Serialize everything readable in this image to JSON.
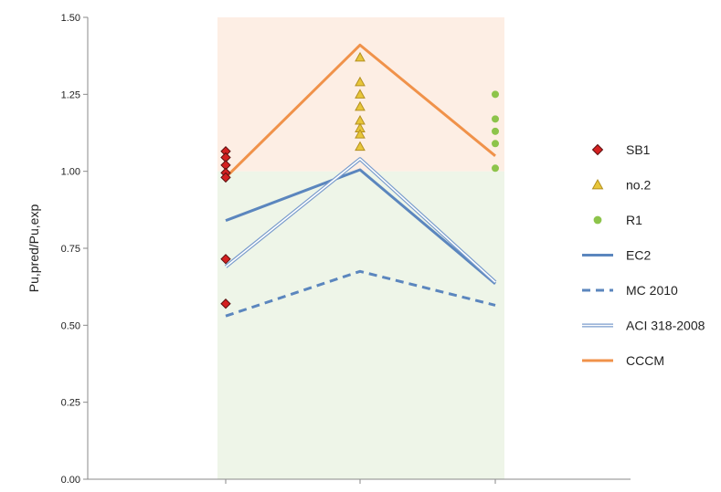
{
  "chart_data": {
    "type": "line",
    "categories": [
      "",
      "",
      ""
    ],
    "ylabel": "Pu,pred/Pu,exp",
    "ylim": [
      0,
      1.5
    ],
    "yticks": [
      0.0,
      0.25,
      0.5,
      0.75,
      1.0,
      1.25,
      1.5
    ],
    "ytick_labels": [
      "0.00",
      "0.25",
      "0.50",
      "0.75",
      "1.00",
      "1.25",
      "1.50"
    ],
    "bands": [
      {
        "from": 0,
        "to": 1.0,
        "color": "#eef5e8"
      },
      {
        "from": 1.0,
        "to": 1.5,
        "color": "#fdeee4"
      }
    ],
    "scatter_series": [
      {
        "name": "SB1",
        "marker": "diamond",
        "color": "#d42020",
        "x_index": 0,
        "values": [
          1.065,
          1.045,
          1.02,
          0.995,
          0.98,
          0.715,
          0.57
        ]
      },
      {
        "name": "no.2",
        "marker": "triangle",
        "color": "#e8c63a",
        "x_index": 1,
        "values": [
          1.37,
          1.29,
          1.25,
          1.21,
          1.165,
          1.14,
          1.12,
          1.08
        ]
      },
      {
        "name": "R1",
        "marker": "circle",
        "color": "#8dc44b",
        "x_index": 2,
        "values": [
          1.25,
          1.17,
          1.13,
          1.09,
          1.01
        ]
      }
    ],
    "line_series": [
      {
        "name": "EC2",
        "style": "solid",
        "color": "#5b86be",
        "values": [
          0.84,
          1.005,
          0.635
        ]
      },
      {
        "name": "MC 2010",
        "style": "dashed",
        "color": "#5b86be",
        "values": [
          0.53,
          0.675,
          0.565
        ]
      },
      {
        "name": "ACI 318-2008",
        "style": "double",
        "color": "#7a9ccc",
        "values": [
          0.69,
          1.04,
          0.64
        ]
      },
      {
        "name": "CCCM",
        "style": "solid",
        "color": "#f0924a",
        "values": [
          0.98,
          1.41,
          1.05
        ]
      }
    ],
    "legend": {
      "position": "right"
    }
  }
}
